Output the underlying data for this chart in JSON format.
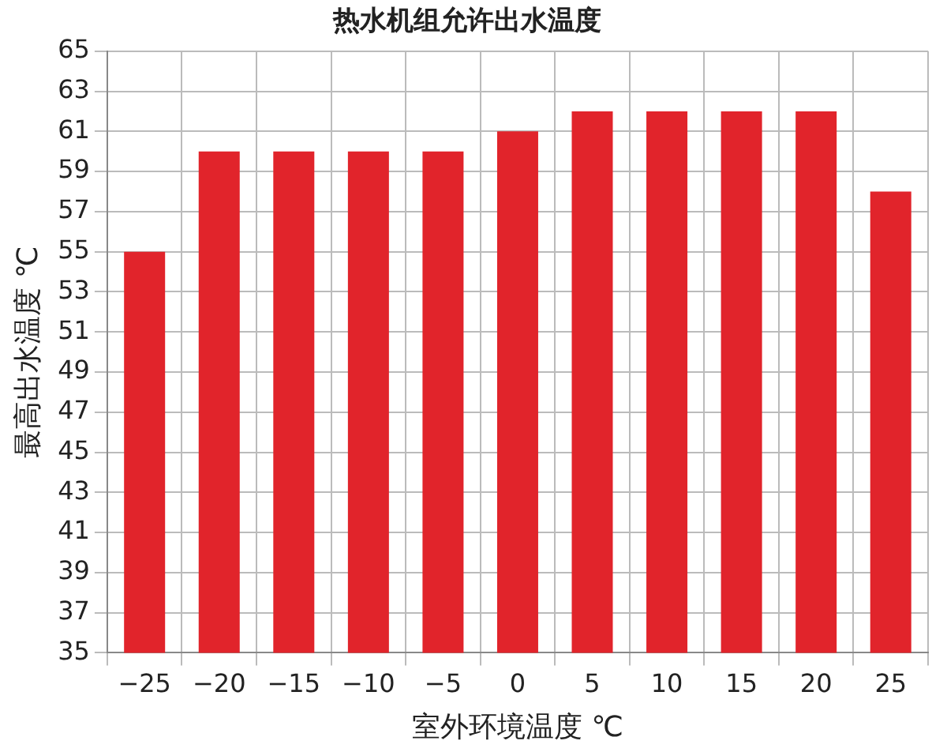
{
  "chart_data": {
    "type": "bar",
    "title": "热水机组允许出水温度",
    "xlabel": "室外环境温度 ℃",
    "ylabel": "最高出水温度 ℃",
    "categories": [
      "−25",
      "−20",
      "−15",
      "−10",
      "−5",
      "0",
      "5",
      "10",
      "15",
      "20",
      "25"
    ],
    "values": [
      55,
      60,
      60,
      60,
      60,
      61,
      62,
      62,
      62,
      62,
      58
    ],
    "color": "#e1242b",
    "ylim": [
      35,
      65
    ],
    "yticks": [
      35,
      37,
      39,
      41,
      43,
      45,
      47,
      49,
      51,
      53,
      55,
      57,
      59,
      61,
      63,
      65
    ],
    "grid": true
  }
}
